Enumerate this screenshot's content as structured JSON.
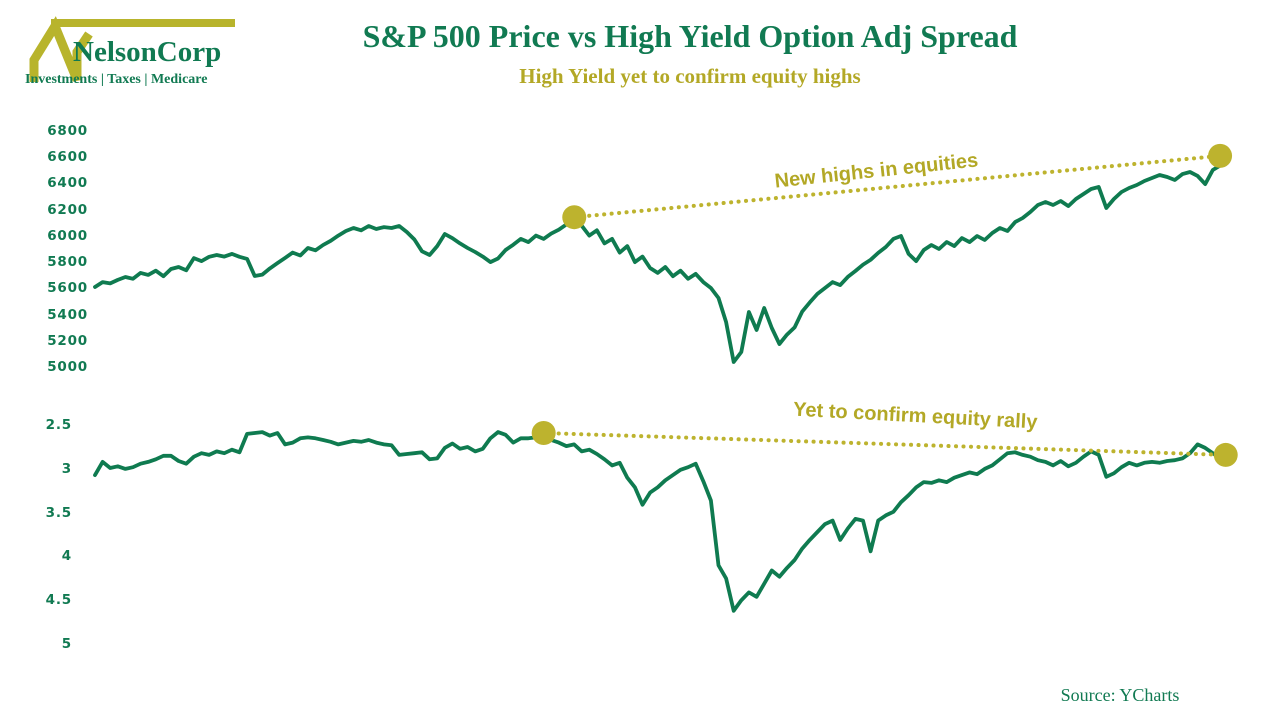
{
  "header": {
    "logo": {
      "name": "NelsonCorp",
      "tagline": "Investments | Taxes | Medicare"
    },
    "title": "S&P 500 Price vs High Yield Option Adj Spread",
    "subtitle": "High Yield yet to confirm equity highs"
  },
  "footer": {
    "source": "Source: YCharts"
  },
  "colors": {
    "brand_green": "#117a52",
    "line_green": "#0f7b50",
    "olive_text": "#b3a826",
    "olive_marker": "#bdb32e"
  },
  "chart_data": [
    {
      "type": "line",
      "title": "S&P 500 Price",
      "ylim": [
        5000,
        6800
      ],
      "y_axis_direction": "up",
      "grid": false,
      "legend": "none",
      "yticks": [
        {
          "label": "6800",
          "value": 6800
        },
        {
          "label": "6600",
          "value": 6600
        },
        {
          "label": "6400",
          "value": 6400
        },
        {
          "label": "6200",
          "value": 6200
        },
        {
          "label": "6000",
          "value": 6000
        },
        {
          "label": "5800",
          "value": 5800
        },
        {
          "label": "5600",
          "value": 5600
        },
        {
          "label": "5400",
          "value": 5400
        },
        {
          "label": "5200",
          "value": 5200
        },
        {
          "label": "5000",
          "value": 5000
        }
      ],
      "annotation": {
        "label": "New highs in equities",
        "from": {
          "x_frac": 0.423,
          "value": 6150
        },
        "to": {
          "x_frac": 0.993,
          "value": 6618
        }
      },
      "series": [
        {
          "name": "S&P 500 Price",
          "values": [
            5618,
            5655,
            5645,
            5672,
            5694,
            5680,
            5725,
            5710,
            5742,
            5700,
            5755,
            5770,
            5745,
            5838,
            5815,
            5848,
            5862,
            5850,
            5870,
            5848,
            5832,
            5702,
            5712,
            5760,
            5800,
            5840,
            5880,
            5858,
            5915,
            5898,
            5938,
            5970,
            6010,
            6045,
            6068,
            6050,
            6083,
            6060,
            6075,
            6068,
            6083,
            6037,
            5980,
            5890,
            5862,
            5930,
            6022,
            5990,
            5950,
            5915,
            5885,
            5850,
            5808,
            5835,
            5900,
            5940,
            5985,
            5960,
            6010,
            5985,
            6025,
            6055,
            6095,
            6144,
            6085,
            6010,
            6050,
            5950,
            5985,
            5880,
            5930,
            5808,
            5850,
            5763,
            5725,
            5770,
            5700,
            5742,
            5680,
            5718,
            5655,
            5610,
            5534,
            5350,
            5046,
            5122,
            5427,
            5290,
            5458,
            5305,
            5183,
            5255,
            5310,
            5430,
            5500,
            5565,
            5610,
            5655,
            5632,
            5695,
            5740,
            5788,
            5825,
            5878,
            5923,
            5985,
            6007,
            5870,
            5815,
            5900,
            5938,
            5908,
            5961,
            5930,
            5991,
            5960,
            6007,
            5976,
            6030,
            6068,
            6045,
            6113,
            6144,
            6190,
            6243,
            6266,
            6243,
            6274,
            6235,
            6289,
            6327,
            6365,
            6381,
            6220,
            6289,
            6342,
            6373,
            6396,
            6426,
            6449,
            6472,
            6457,
            6434,
            6479,
            6495,
            6465,
            6403,
            6510,
            6545,
            6600
          ]
        }
      ]
    },
    {
      "type": "line",
      "title": "High Yield Option Adjusted Spread",
      "ylim": [
        2.5,
        5
      ],
      "y_axis_direction": "inverted",
      "grid": false,
      "legend": "none",
      "yticks": [
        {
          "label": "2.5",
          "value": 2.5
        },
        {
          "label": "3",
          "value": 3
        },
        {
          "label": "3.5",
          "value": 3.5
        },
        {
          "label": "4",
          "value": 4
        },
        {
          "label": "4.5",
          "value": 4.5
        },
        {
          "label": "5",
          "value": 5
        }
      ],
      "annotation": {
        "label": "Yet to confirm equity rally",
        "from": {
          "x_frac": 0.396,
          "value": 2.58
        },
        "to": {
          "x_frac": 0.998,
          "value": 2.83
        }
      },
      "series": [
        {
          "name": "High Yield Option Adjusted Spread",
          "values": [
            3.06,
            2.91,
            2.98,
            2.96,
            2.99,
            2.97,
            2.93,
            2.91,
            2.88,
            2.84,
            2.84,
            2.9,
            2.93,
            2.85,
            2.81,
            2.83,
            2.79,
            2.81,
            2.77,
            2.8,
            2.59,
            2.58,
            2.57,
            2.61,
            2.58,
            2.71,
            2.69,
            2.64,
            2.63,
            2.64,
            2.66,
            2.68,
            2.71,
            2.69,
            2.67,
            2.68,
            2.66,
            2.69,
            2.71,
            2.72,
            2.83,
            2.82,
            2.81,
            2.8,
            2.88,
            2.87,
            2.75,
            2.7,
            2.76,
            2.74,
            2.79,
            2.76,
            2.64,
            2.57,
            2.6,
            2.69,
            2.64,
            2.64,
            2.63,
            2.63,
            2.66,
            2.69,
            2.73,
            2.71,
            2.79,
            2.77,
            2.82,
            2.88,
            2.95,
            2.92,
            3.09,
            3.2,
            3.4,
            3.26,
            3.2,
            3.12,
            3.06,
            3.0,
            2.97,
            2.93,
            3.13,
            3.35,
            4.09,
            4.24,
            4.61,
            4.49,
            4.4,
            4.45,
            4.3,
            4.15,
            4.22,
            4.12,
            4.03,
            3.9,
            3.8,
            3.71,
            3.62,
            3.58,
            3.8,
            3.67,
            3.56,
            3.58,
            3.93,
            3.58,
            3.52,
            3.48,
            3.37,
            3.29,
            3.2,
            3.14,
            3.15,
            3.12,
            3.14,
            3.09,
            3.06,
            3.03,
            3.05,
            2.99,
            2.95,
            2.88,
            2.81,
            2.8,
            2.83,
            2.85,
            2.89,
            2.91,
            2.95,
            2.9,
            2.96,
            2.92,
            2.85,
            2.79,
            2.83,
            3.08,
            3.04,
            2.97,
            2.92,
            2.95,
            2.92,
            2.91,
            2.92,
            2.9,
            2.89,
            2.87,
            2.81,
            2.71,
            2.75,
            2.81,
            2.87,
            2.83
          ]
        }
      ]
    }
  ]
}
